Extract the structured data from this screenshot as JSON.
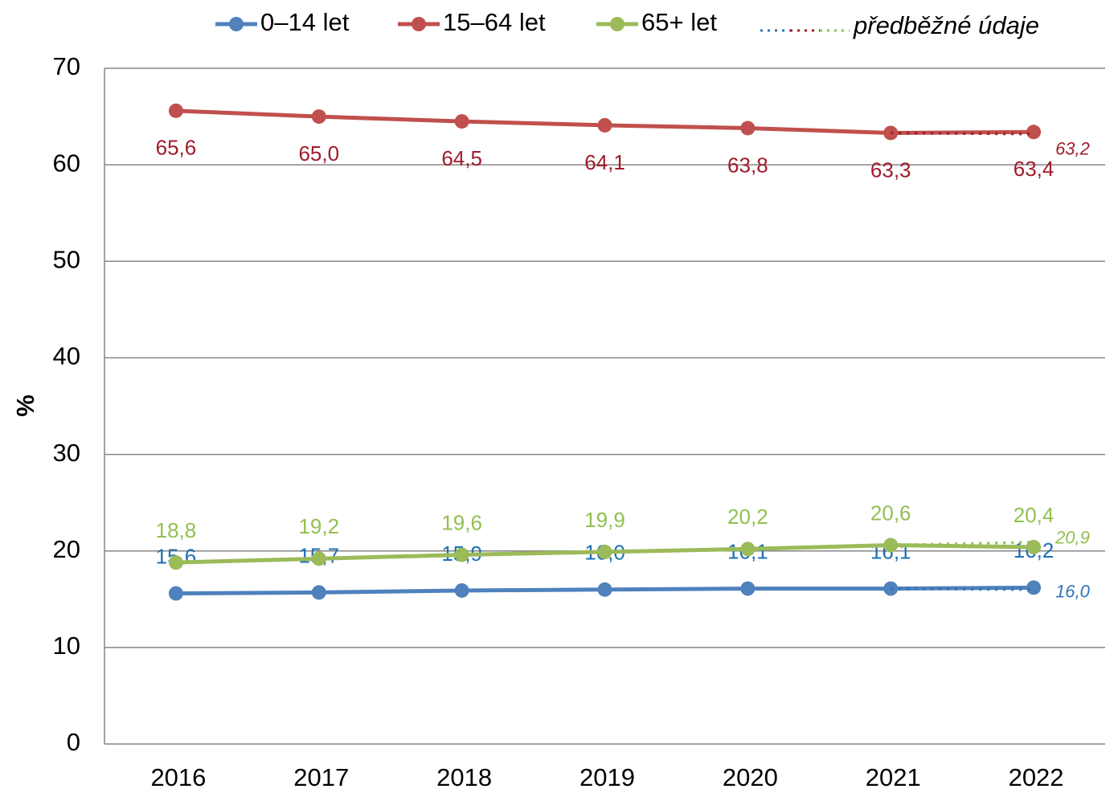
{
  "chart_data": {
    "type": "line",
    "ylabel": "%",
    "categories": [
      "2016",
      "2017",
      "2018",
      "2019",
      "2020",
      "2021",
      "2022"
    ],
    "ylim": [
      0,
      70
    ],
    "yticks": [
      0,
      10,
      20,
      30,
      40,
      50,
      60,
      70
    ],
    "grid": true,
    "legend": "top",
    "series": [
      {
        "name": "0–14 let",
        "color": "#4f81bd",
        "label_color": "#1f6fb4",
        "values": [
          15.6,
          15.7,
          15.9,
          16.0,
          16.1,
          16.1,
          16.2
        ],
        "value_labels": [
          "15,6",
          "15,7",
          "15,9",
          "16,0",
          "16,1",
          "16,1",
          "16,2"
        ]
      },
      {
        "name": "15–64 let",
        "color": "#c0504d",
        "label_color": "#a01c2c",
        "values": [
          65.6,
          65.0,
          64.5,
          64.1,
          63.8,
          63.3,
          63.4
        ],
        "value_labels": [
          "65,6",
          "65,0",
          "64,5",
          "64,1",
          "63,8",
          "63,3",
          "63,4"
        ]
      },
      {
        "name": "65+ let",
        "color": "#9bbb59",
        "label_color": "#92c050",
        "values": [
          18.8,
          19.2,
          19.6,
          19.9,
          20.2,
          20.6,
          20.4
        ],
        "value_labels": [
          "18,8",
          "19,2",
          "19,6",
          "19,9",
          "20,2",
          "20,6",
          "20,4"
        ]
      }
    ],
    "preliminary": {
      "name": "předběžné údaje",
      "series": [
        {
          "color": "#2e75b6",
          "values": [
            null,
            null,
            null,
            null,
            null,
            16.1,
            16.0
          ],
          "value_labels": [
            null,
            null,
            null,
            null,
            null,
            null,
            "16,0"
          ]
        },
        {
          "color": "#a01c2c",
          "values": [
            null,
            null,
            null,
            null,
            null,
            63.3,
            63.2
          ],
          "value_labels": [
            null,
            null,
            null,
            null,
            null,
            null,
            "63,2"
          ]
        },
        {
          "color": "#92c050",
          "values": [
            null,
            null,
            null,
            null,
            null,
            20.6,
            20.9
          ],
          "value_labels": [
            null,
            null,
            null,
            null,
            null,
            null,
            "20,9"
          ]
        }
      ]
    }
  }
}
